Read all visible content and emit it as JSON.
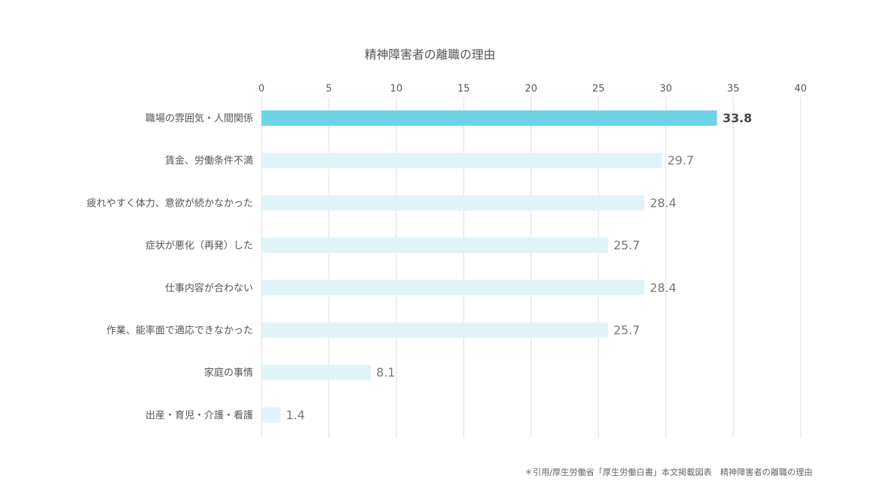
{
  "chart_data": {
    "type": "bar",
    "orientation": "horizontal",
    "title": "精神障害者の離職の理由",
    "categories": [
      "職場の雰囲気・人間関係",
      "賃金、労働条件不満",
      "疲れやすく体力、意欲が続かなかった",
      "症状が悪化（再発）した",
      "仕事内容が合わない",
      "作業、能率面で適応できなかった",
      "家庭の事情",
      "出産・育児・介護・看護"
    ],
    "values": [
      33.8,
      29.7,
      28.4,
      25.7,
      28.4,
      25.7,
      8.1,
      1.4
    ],
    "value_labels": [
      "33.8",
      "29.7",
      "28.4",
      "25.7",
      "28.4",
      "25.7",
      "8.1",
      "1.4"
    ],
    "xlim": [
      0,
      40
    ],
    "x_ticks": [
      "0",
      "5",
      "10",
      "15",
      "20",
      "25",
      "30",
      "35",
      "40"
    ],
    "x_axis_position": "top",
    "grid": true,
    "highlight_index": 0,
    "colors": {
      "highlight": "#6dd3e6",
      "bar": "#e0f3f8",
      "grid": "#dcdcdc",
      "text": "#555555"
    }
  },
  "footer": {
    "source": "＊引用/厚生労働省「厚生労働白書」本文掲載図表　精神障害者の離職の理由"
  }
}
